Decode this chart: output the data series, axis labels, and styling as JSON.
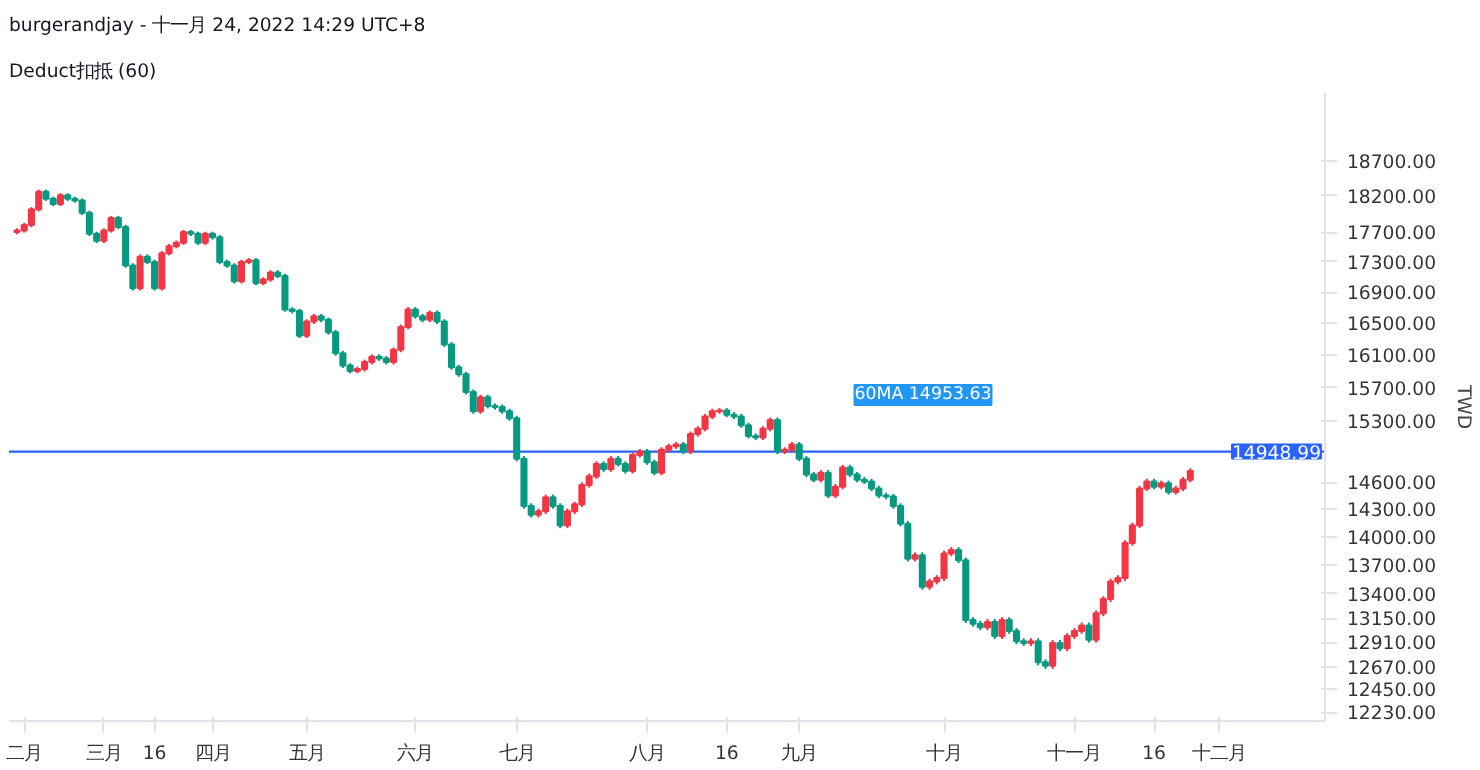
{
  "chart_data": {
    "type": "candlestick",
    "title": "burgerandjay - 十一月 24, 2022 14:29 UTC+8",
    "subtitle": "Deduct扣抵 (60)",
    "ylabel": "TWD",
    "categories": [
      null,
      "二月",
      null,
      null,
      null,
      null,
      null,
      null,
      null,
      null,
      null,
      null,
      "三月",
      null,
      null,
      null,
      null,
      null,
      null,
      "16",
      null,
      null,
      null,
      null,
      null,
      null,
      null,
      "四月",
      null,
      null,
      null,
      null,
      null,
      null,
      null,
      null,
      null,
      null,
      null,
      null,
      "五月",
      null,
      null,
      null,
      null,
      null,
      null,
      null,
      null,
      null,
      null,
      null,
      null,
      null,
      null,
      "六月",
      null,
      null,
      null,
      null,
      null,
      null,
      null,
      null,
      null,
      null,
      null,
      null,
      null,
      "七月",
      null,
      null,
      null,
      null,
      null,
      null,
      null,
      null,
      null,
      null,
      null,
      null,
      null,
      null,
      null,
      null,
      null,
      "八月",
      null,
      null,
      null,
      null,
      null,
      null,
      null,
      null,
      null,
      null,
      "16",
      null,
      null,
      null,
      null,
      null,
      null,
      null,
      null,
      null,
      "九月",
      null,
      null,
      null,
      null,
      null,
      null,
      null,
      null,
      null,
      null,
      null,
      null,
      null,
      null,
      null,
      null,
      null,
      null,
      null,
      "十月",
      null,
      null,
      null,
      null,
      null,
      null,
      null,
      null,
      null,
      null,
      null,
      null,
      null,
      null,
      null,
      null,
      null,
      "十一月",
      null,
      null,
      null,
      null,
      null,
      null,
      null,
      null,
      null,
      null,
      "16",
      null,
      null,
      null,
      null,
      null,
      null,
      null,
      null,
      "十二月",
      null,
      null,
      null,
      null,
      null,
      null,
      null,
      null,
      null,
      null,
      null,
      null,
      null,
      null
    ],
    "ohlc": [
      [
        17700,
        17753,
        17670,
        17723
      ],
      [
        17723,
        17826,
        17693,
        17796
      ],
      [
        17796,
        18043,
        17766,
        18013
      ],
      [
        18013,
        18289,
        17983,
        18259
      ],
      [
        18259,
        18289,
        18130,
        18160
      ],
      [
        18160,
        18190,
        18057,
        18087
      ],
      [
        18087,
        18239,
        18057,
        18209
      ],
      [
        18209,
        18239,
        18130,
        18160
      ],
      [
        18160,
        18190,
        18105,
        18135
      ],
      [
        18135,
        18165,
        17935,
        17965
      ],
      [
        17965,
        17995,
        17646,
        17676
      ],
      [
        17676,
        17706,
        17551,
        17581
      ],
      [
        17581,
        17753,
        17551,
        17723
      ],
      [
        17723,
        17923,
        17693,
        17893
      ],
      [
        17893,
        17923,
        17741,
        17771
      ],
      [
        17771,
        17801,
        17221,
        17251
      ],
      [
        17251,
        17281,
        16921,
        16951
      ],
      [
        16951,
        17398,
        16921,
        17368
      ],
      [
        17368,
        17398,
        17268,
        17298
      ],
      [
        17298,
        17328,
        16921,
        16951
      ],
      [
        16951,
        17445,
        16921,
        17415
      ],
      [
        17415,
        17540,
        17385,
        17510
      ],
      [
        17510,
        17587,
        17480,
        17557
      ],
      [
        17557,
        17730,
        17527,
        17700
      ],
      [
        17700,
        17730,
        17646,
        17676
      ],
      [
        17676,
        17706,
        17527,
        17557
      ],
      [
        17557,
        17706,
        17527,
        17676
      ],
      [
        17676,
        17706,
        17599,
        17629
      ],
      [
        17629,
        17659,
        17268,
        17298
      ],
      [
        17298,
        17328,
        17221,
        17251
      ],
      [
        17251,
        17281,
        17013,
        17043
      ],
      [
        17043,
        17328,
        17013,
        17298
      ],
      [
        17298,
        17351,
        17268,
        17321
      ],
      [
        17321,
        17351,
        16990,
        17020
      ],
      [
        17020,
        17096,
        16990,
        17066
      ],
      [
        17066,
        17189,
        17036,
        17159
      ],
      [
        17159,
        17189,
        17082,
        17112
      ],
      [
        17112,
        17142,
        16648,
        16678
      ],
      [
        16678,
        16708,
        16626,
        16656
      ],
      [
        16656,
        16686,
        16314,
        16344
      ],
      [
        16344,
        16552,
        16314,
        16522
      ],
      [
        16522,
        16619,
        16492,
        16589
      ],
      [
        16589,
        16619,
        16514,
        16544
      ],
      [
        16544,
        16574,
        16357,
        16387
      ],
      [
        16387,
        16417,
        16094,
        16124
      ],
      [
        16124,
        16154,
        15942,
        15972
      ],
      [
        15972,
        16002,
        15877,
        15907
      ],
      [
        15907,
        15960,
        15877,
        15930
      ],
      [
        15930,
        16045,
        15900,
        16015
      ],
      [
        16015,
        16111,
        15985,
        16081
      ],
      [
        16081,
        16111,
        16030,
        16060
      ],
      [
        16060,
        16090,
        15985,
        16015
      ],
      [
        16015,
        16197,
        15985,
        16167
      ],
      [
        16167,
        16485,
        16137,
        16455
      ],
      [
        16455,
        16708,
        16425,
        16678
      ],
      [
        16678,
        16708,
        16559,
        16589
      ],
      [
        16589,
        16619,
        16514,
        16544
      ],
      [
        16544,
        16664,
        16514,
        16634
      ],
      [
        16634,
        16664,
        16492,
        16522
      ],
      [
        16522,
        16552,
        16203,
        16233
      ],
      [
        16233,
        16263,
        15921,
        15951
      ],
      [
        15951,
        15981,
        15835,
        15865
      ],
      [
        15865,
        15895,
        15622,
        15652
      ],
      [
        15652,
        15682,
        15391,
        15421
      ],
      [
        15421,
        15619,
        15391,
        15589
      ],
      [
        15589,
        15619,
        15454,
        15484
      ],
      [
        15484,
        15514,
        15440,
        15470
      ],
      [
        15470,
        15500,
        15391,
        15421
      ],
      [
        15421,
        15451,
        15308,
        15338
      ],
      [
        15338,
        15368,
        14838,
        14868
      ],
      [
        14868,
        14898,
        14306,
        14336
      ],
      [
        14336,
        14366,
        14209,
        14239
      ],
      [
        14239,
        14308,
        14209,
        14278
      ],
      [
        14278,
        14463,
        14248,
        14433
      ],
      [
        14433,
        14463,
        14306,
        14336
      ],
      [
        14336,
        14366,
        14094,
        14124
      ],
      [
        14124,
        14308,
        14094,
        14278
      ],
      [
        14278,
        14385,
        14248,
        14355
      ],
      [
        14355,
        14600,
        14325,
        14570
      ],
      [
        14570,
        14699,
        14540,
        14669
      ],
      [
        14669,
        14838,
        14639,
        14808
      ],
      [
        14808,
        14838,
        14718,
        14748
      ],
      [
        14748,
        14898,
        14718,
        14868
      ],
      [
        14868,
        14898,
        14778,
        14808
      ],
      [
        14808,
        14838,
        14698,
        14728
      ],
      [
        14728,
        14939,
        14698,
        14909
      ],
      [
        14909,
        14979,
        14879,
        14949
      ],
      [
        14949,
        14979,
        14798,
        14828
      ],
      [
        14828,
        14858,
        14678,
        14708
      ],
      [
        14708,
        14999,
        14678,
        14969
      ],
      [
        14969,
        15040,
        14939,
        15010
      ],
      [
        15010,
        15060,
        14980,
        15030
      ],
      [
        15030,
        15060,
        14919,
        14949
      ],
      [
        14949,
        15182,
        14919,
        15152
      ],
      [
        15152,
        15244,
        15122,
        15214
      ],
      [
        15214,
        15389,
        15184,
        15359
      ],
      [
        15359,
        15451,
        15329,
        15421
      ],
      [
        15421,
        15460,
        15391,
        15430
      ],
      [
        15430,
        15460,
        15350,
        15380
      ],
      [
        15380,
        15410,
        15329,
        15359
      ],
      [
        15359,
        15389,
        15225,
        15255
      ],
      [
        15255,
        15285,
        15101,
        15131
      ],
      [
        15131,
        15161,
        15082,
        15112
      ],
      [
        15112,
        15244,
        15082,
        15214
      ],
      [
        15214,
        15347,
        15184,
        15317
      ],
      [
        15317,
        15347,
        14919,
        14949
      ],
      [
        14949,
        14999,
        14919,
        14969
      ],
      [
        14969,
        15060,
        14939,
        15030
      ],
      [
        15030,
        15060,
        14838,
        14868
      ],
      [
        14868,
        14898,
        14658,
        14688
      ],
      [
        14688,
        14718,
        14599,
        14629
      ],
      [
        14629,
        14738,
        14599,
        14708
      ],
      [
        14708,
        14738,
        14423,
        14453
      ],
      [
        14453,
        14581,
        14423,
        14551
      ],
      [
        14551,
        14798,
        14521,
        14768
      ],
      [
        14768,
        14798,
        14658,
        14688
      ],
      [
        14688,
        14718,
        14599,
        14629
      ],
      [
        14629,
        14659,
        14580,
        14610
      ],
      [
        14610,
        14640,
        14501,
        14531
      ],
      [
        14531,
        14561,
        14423,
        14453
      ],
      [
        14453,
        14483,
        14410,
        14440
      ],
      [
        14440,
        14470,
        14306,
        14336
      ],
      [
        14336,
        14366,
        14113,
        14143
      ],
      [
        14143,
        14173,
        13737,
        13767
      ],
      [
        13767,
        13834,
        13737,
        13804
      ],
      [
        13804,
        13834,
        13442,
        13472
      ],
      [
        13472,
        13557,
        13442,
        13527
      ],
      [
        13527,
        13593,
        13497,
        13563
      ],
      [
        13563,
        13852,
        13533,
        13822
      ],
      [
        13822,
        13890,
        13792,
        13860
      ],
      [
        13860,
        13890,
        13719,
        13749
      ],
      [
        13749,
        13779,
        13101,
        13131
      ],
      [
        13131,
        13161,
        13064,
        13094
      ],
      [
        13094,
        13124,
        13029,
        13059
      ],
      [
        13059,
        13143,
        13029,
        13113
      ],
      [
        13113,
        13143,
        12941,
        12971
      ],
      [
        12971,
        13161,
        12941,
        13131
      ],
      [
        13131,
        13161,
        12992,
        13022
      ],
      [
        13022,
        13052,
        12889,
        12919
      ],
      [
        12919,
        12949,
        12871,
        12901
      ],
      [
        12901,
        12949,
        12871,
        12919
      ],
      [
        12919,
        12949,
        12681,
        12711
      ],
      [
        12711,
        12741,
        12647,
        12677
      ],
      [
        12677,
        12931,
        12647,
        12901
      ],
      [
        12901,
        12931,
        12820,
        12850
      ],
      [
        12850,
        13001,
        12820,
        12971
      ],
      [
        12971,
        13052,
        12941,
        13022
      ],
      [
        13022,
        13107,
        12992,
        13077
      ],
      [
        13077,
        13107,
        12905,
        12935
      ],
      [
        12935,
        13230,
        12905,
        13200
      ],
      [
        13200,
        13375,
        13170,
        13345
      ],
      [
        13345,
        13557,
        13315,
        13527
      ],
      [
        13527,
        13593,
        13497,
        13563
      ],
      [
        13563,
        13964,
        13533,
        13934
      ],
      [
        13934,
        14154,
        13904,
        14124
      ],
      [
        14124,
        14561,
        14094,
        14531
      ],
      [
        14531,
        14640,
        14501,
        14610
      ],
      [
        14610,
        14640,
        14521,
        14551
      ],
      [
        14551,
        14620,
        14521,
        14590
      ],
      [
        14590,
        14620,
        14462,
        14492
      ],
      [
        14492,
        14561,
        14462,
        14531
      ],
      [
        14531,
        14659,
        14501,
        14629
      ],
      [
        14629,
        14758,
        14599,
        14728
      ],
      null,
      null,
      null,
      null,
      null,
      null,
      null,
      null,
      null,
      null,
      null,
      null,
      null,
      null,
      null,
      null,
      null,
      null
    ],
    "colors": [
      "#f23645",
      "#f23645",
      "#f23645",
      "#f23645",
      "#089981",
      "#089981",
      "#f23645",
      "#089981",
      "#089981",
      "#089981",
      "#089981",
      "#089981",
      "#f23645",
      "#f23645",
      "#089981",
      "#089981",
      "#089981",
      "#f23645",
      "#089981",
      "#089981",
      "#f23645",
      "#f23645",
      "#f23645",
      "#f23645",
      "#089981",
      "#089981",
      "#f23645",
      "#089981",
      "#089981",
      "#089981",
      "#089981",
      "#f23645",
      "#f23645",
      "#089981",
      "#f23645",
      "#f23645",
      "#089981",
      "#089981",
      "#089981",
      "#089981",
      "#f23645",
      "#f23645",
      "#089981",
      "#089981",
      "#089981",
      "#089981",
      "#089981",
      "#f23645",
      "#f23645",
      "#f23645",
      "#089981",
      "#089981",
      "#f23645",
      "#f23645",
      "#f23645",
      "#089981",
      "#089981",
      "#f23645",
      "#089981",
      "#089981",
      "#089981",
      "#089981",
      "#089981",
      "#089981",
      "#f23645",
      "#089981",
      "#089981",
      "#089981",
      "#089981",
      "#089981",
      "#089981",
      "#089981",
      "#f23645",
      "#f23645",
      "#089981",
      "#089981",
      "#f23645",
      "#f23645",
      "#f23645",
      "#f23645",
      "#f23645",
      "#089981",
      "#f23645",
      "#089981",
      "#089981",
      "#f23645",
      "#f23645",
      "#089981",
      "#089981",
      "#f23645",
      "#f23645",
      "#f23645",
      "#089981",
      "#f23645",
      "#f23645",
      "#f23645",
      "#f23645",
      "#f23645",
      "#089981",
      "#089981",
      "#089981",
      "#089981",
      "#089981",
      "#f23645",
      "#f23645",
      "#089981",
      "#f23645",
      "#f23645",
      "#089981",
      "#089981",
      "#089981",
      "#f23645",
      "#089981",
      "#f23645",
      "#f23645",
      "#089981",
      "#089981",
      "#089981",
      "#089981",
      "#089981",
      "#089981",
      "#089981",
      "#089981",
      "#089981",
      "#f23645",
      "#089981",
      "#f23645",
      "#f23645",
      "#f23645",
      "#f23645",
      "#089981",
      "#089981",
      "#089981",
      "#089981",
      "#f23645",
      "#089981",
      "#f23645",
      "#089981",
      "#089981",
      "#089981",
      "#f23645",
      "#089981",
      "#089981",
      "#f23645",
      "#089981",
      "#f23645",
      "#f23645",
      "#f23645",
      "#089981",
      "#f23645",
      "#f23645",
      "#f23645",
      "#f23645",
      "#f23645",
      "#f23645",
      "#f23645",
      "#f23645",
      "#089981",
      "#f23645",
      "#089981",
      "#f23645",
      "#f23645",
      "#f23645",
      null,
      null,
      null,
      null,
      null,
      null,
      null,
      null,
      null,
      null,
      null,
      null,
      null,
      null,
      null,
      null,
      null,
      null
    ],
    "log": "y",
    "grid": false,
    "ylim": [
      12150,
      19700
    ],
    "yticks": [
      {
        "value": 18700,
        "label": "18700.00"
      },
      {
        "value": 18200,
        "label": "18200.00"
      },
      {
        "value": 17700,
        "label": "17700.00"
      },
      {
        "value": 17300,
        "label": "17300.00"
      },
      {
        "value": 16900,
        "label": "16900.00"
      },
      {
        "value": 16500,
        "label": "16500.00"
      },
      {
        "value": 16100,
        "label": "16100.00"
      },
      {
        "value": 15700,
        "label": "15700.00"
      },
      {
        "value": 15300,
        "label": "15300.00"
      },
      {
        "value": 14600,
        "label": "14600.00"
      },
      {
        "value": 14300,
        "label": "14300.00"
      },
      {
        "value": 14000,
        "label": "14000.00"
      },
      {
        "value": 13700,
        "label": "13700.00"
      },
      {
        "value": 13400,
        "label": "13400.00"
      },
      {
        "value": 13150,
        "label": "13150.00"
      },
      {
        "value": 12910,
        "label": "12910.00"
      },
      {
        "value": 12670,
        "label": "12670.00"
      },
      {
        "value": 12450,
        "label": "12450.00"
      },
      {
        "value": 12230,
        "label": "12230.00"
      }
    ],
    "ref_lines": [
      {
        "axis": "y",
        "value": 14948.99,
        "label": "14948.99",
        "color": "#2962ff",
        "line_style": "solid"
      }
    ],
    "annotations": [
      "60MA 14953.63"
    ]
  }
}
